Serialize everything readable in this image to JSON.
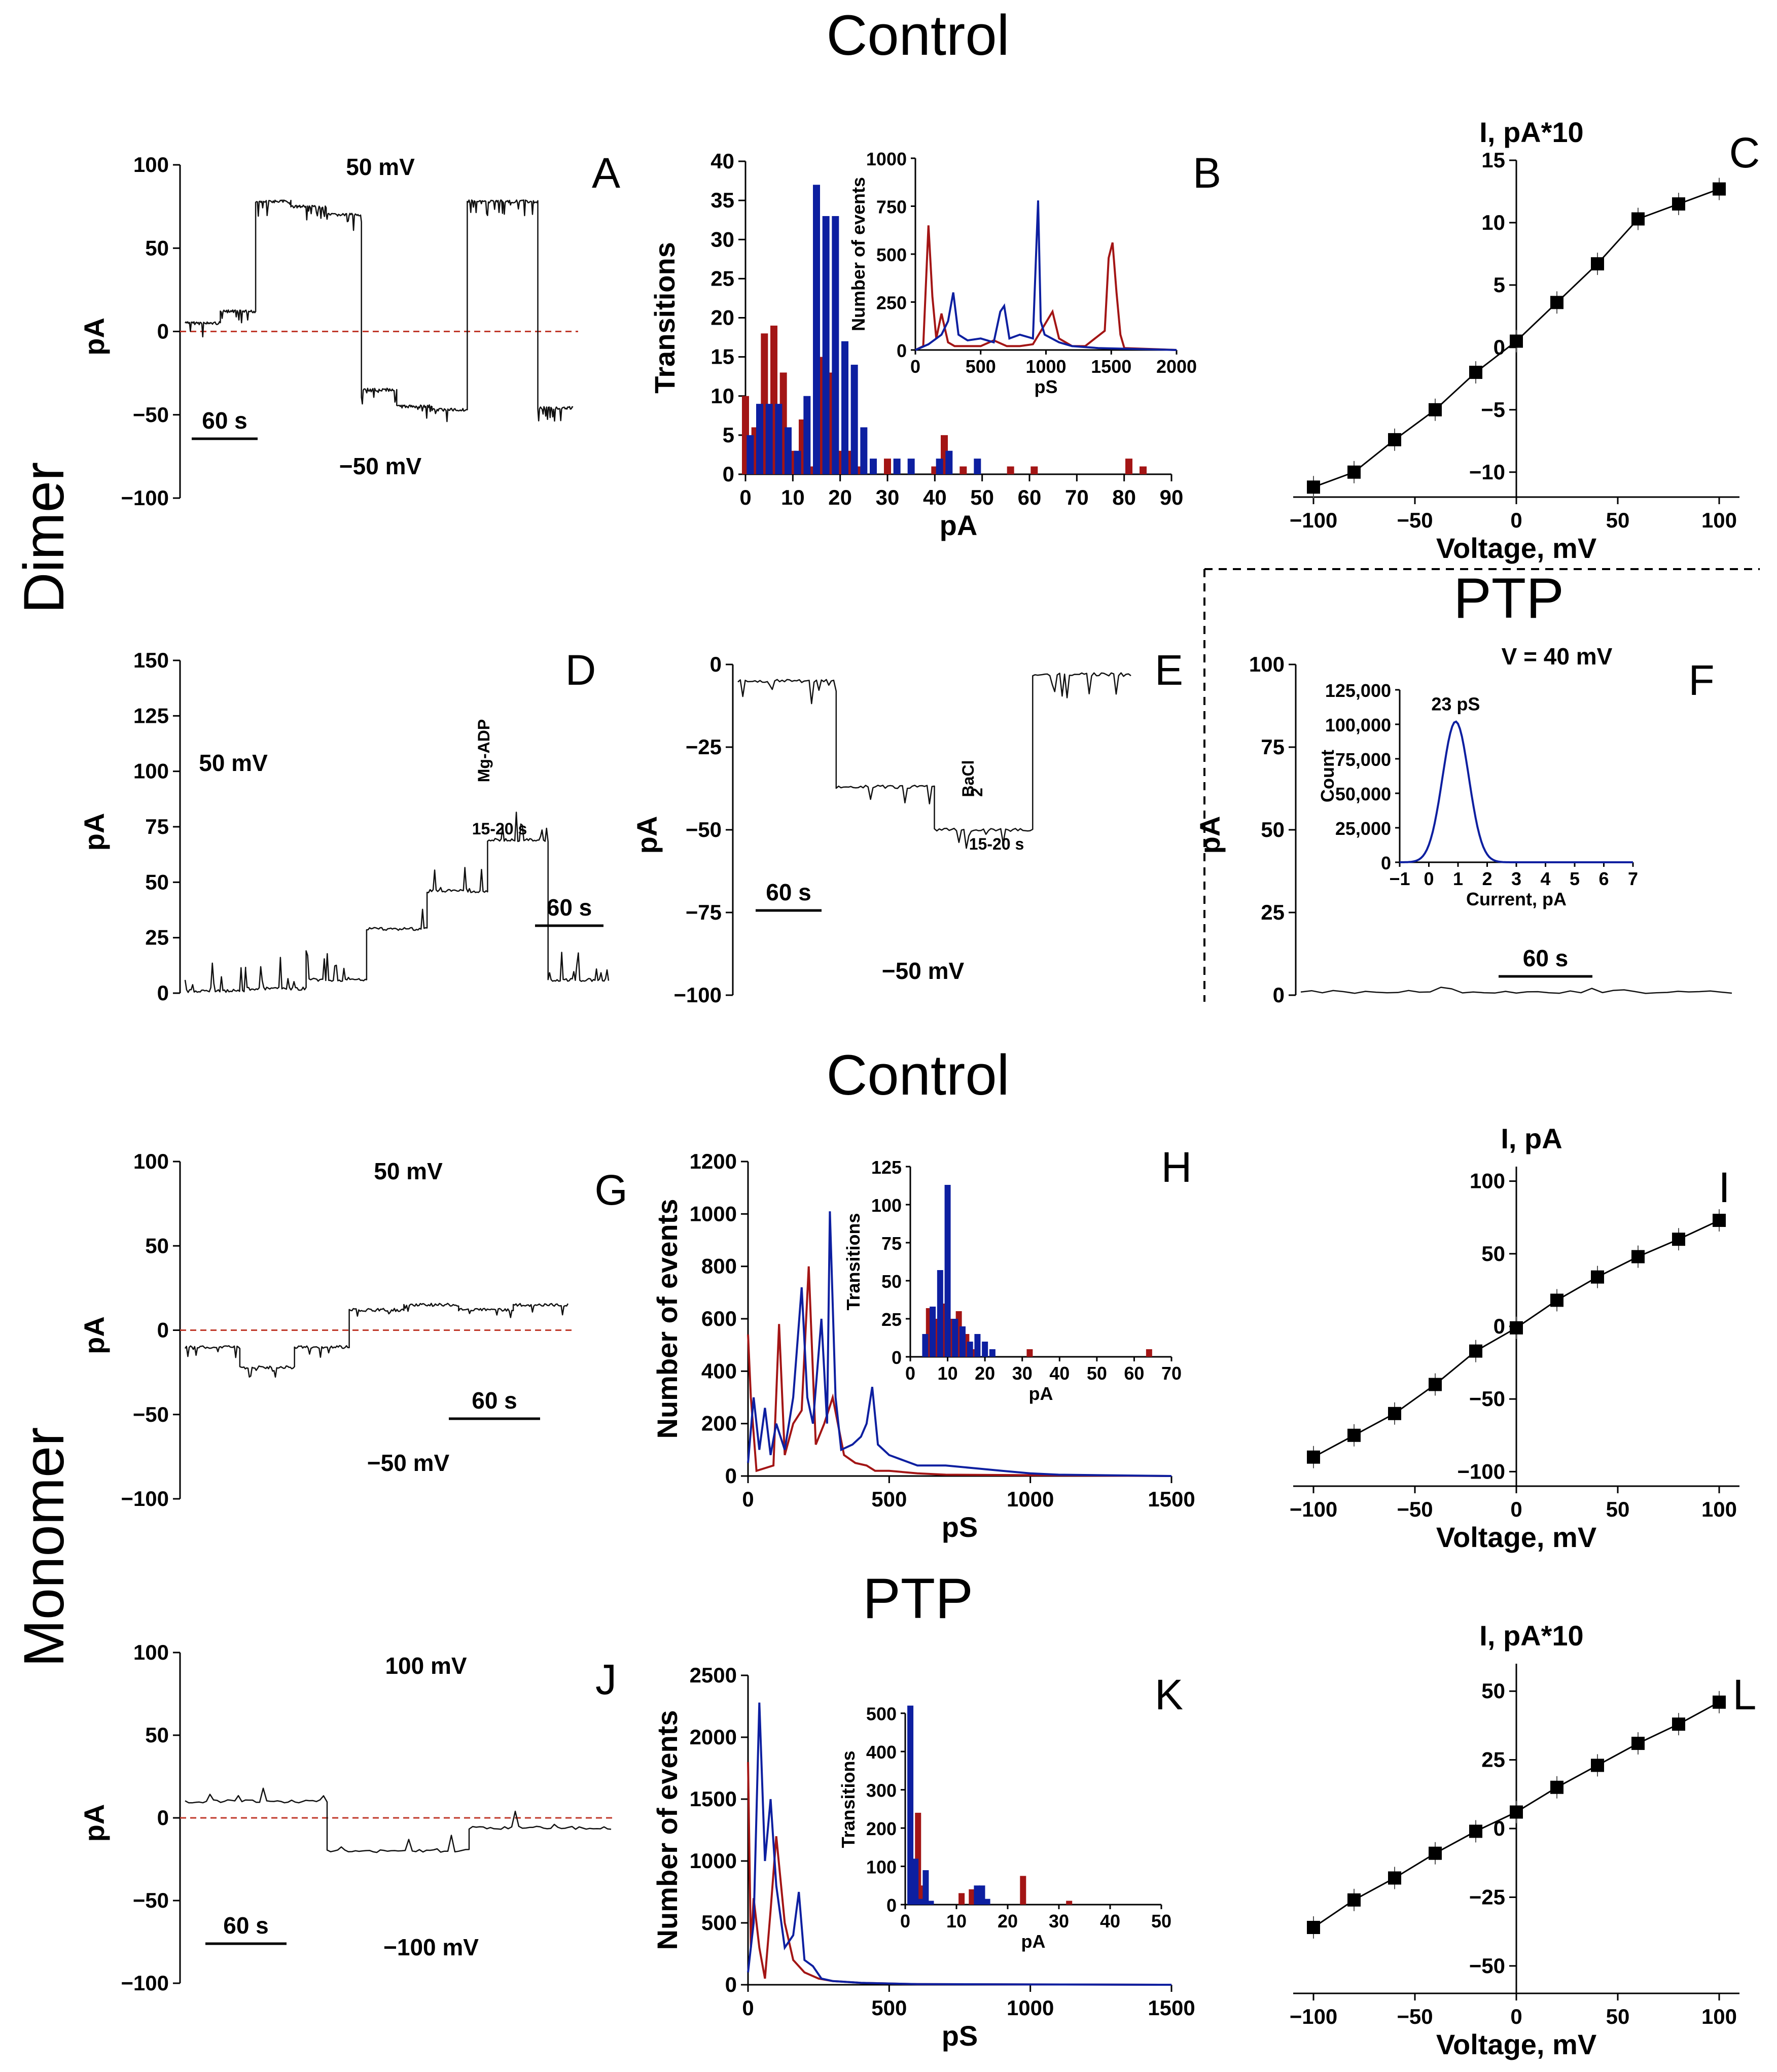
{
  "sections": {
    "control_top": "Control",
    "ptp_top": "PTP",
    "control_mid": "Control",
    "ptp_bot": "PTP",
    "dimer": "Dimer",
    "monomer": "Monomer"
  },
  "colors": {
    "red": "#a31515",
    "blue": "#0d1fa0",
    "trace": "#111111"
  },
  "chart_data": [
    {
      "id": "A",
      "type": "line",
      "letter": "A",
      "ylabel": "pA",
      "ylim": [
        -100,
        100
      ],
      "yticks": [
        "100",
        "50",
        "0",
        "-50",
        "-100"
      ],
      "notes": [
        "50 mV",
        "-50 mV"
      ],
      "scalebar": "60 s",
      "levels": [
        5,
        12,
        78,
        75,
        70,
        -35,
        -45,
        -47,
        78,
        78,
        -46
      ]
    },
    {
      "id": "B",
      "type": "bar",
      "letter": "B",
      "ylabel": "Transitions",
      "xlabel": "pA",
      "xlim": [
        0,
        90
      ],
      "ylim": [
        0,
        40
      ],
      "xticks": [
        "0",
        "10",
        "20",
        "30",
        "40",
        "50",
        "60",
        "70",
        "80",
        "90"
      ],
      "yticks": [
        "40",
        "35",
        "30",
        "25",
        "20",
        "15",
        "10",
        "5",
        "0"
      ],
      "series": [
        {
          "name": "red",
          "x": [
            0,
            2,
            4,
            6,
            8,
            10,
            12,
            14,
            16,
            18,
            20,
            22,
            24,
            30,
            40,
            42,
            46,
            56,
            61,
            81,
            84
          ],
          "values": [
            10,
            6,
            18,
            19,
            13,
            3,
            7,
            1,
            15,
            13,
            3,
            3,
            1,
            2,
            1,
            5,
            1,
            1,
            1,
            2,
            1
          ]
        },
        {
          "name": "blue",
          "x": [
            1,
            3,
            5,
            7,
            9,
            11,
            13,
            15,
            17,
            19,
            21,
            23,
            25,
            27,
            32,
            35,
            41,
            43,
            49
          ],
          "values": [
            5,
            9,
            9,
            9,
            6,
            3,
            10,
            37,
            33,
            33,
            17,
            14,
            6,
            2,
            2,
            2,
            2,
            3,
            2
          ]
        }
      ],
      "inset": {
        "ylabel": "Number of events",
        "xlabel": "pS",
        "xlim": [
          0,
          2000
        ],
        "ylim": [
          0,
          1000
        ],
        "xticks": [
          "0",
          "500",
          "1000",
          "1500",
          "2000"
        ],
        "yticks": [
          "1000",
          "750",
          "500",
          "250",
          "0"
        ],
        "series": [
          {
            "name": "red",
            "x": [
              0,
              60,
              100,
              130,
              160,
              200,
              250,
              300,
              400,
              500,
              600,
              700,
              800,
              900,
              1050,
              1100,
              1200,
              1300,
              1450,
              1480,
              1510,
              1540,
              1570,
              1600,
              2000
            ],
            "values": [
              0,
              20,
              650,
              280,
              60,
              190,
              40,
              20,
              20,
              20,
              50,
              20,
              20,
              30,
              200,
              60,
              20,
              20,
              100,
              480,
              560,
              300,
              80,
              10,
              0
            ]
          },
          {
            "name": "blue",
            "x": [
              0,
              100,
              200,
              250,
              290,
              330,
              400,
              500,
              600,
              650,
              680,
              720,
              800,
              900,
              940,
              960,
              990,
              1100,
              1200,
              1400,
              2000
            ],
            "values": [
              0,
              30,
              80,
              150,
              300,
              80,
              50,
              60,
              40,
              200,
              230,
              60,
              80,
              60,
              780,
              150,
              80,
              40,
              20,
              10,
              0
            ]
          }
        ]
      }
    },
    {
      "id": "C",
      "type": "scatter",
      "letter": "C",
      "title": "I, pA*10",
      "xlabel": "Voltage, mV",
      "xlim": [
        -100,
        100
      ],
      "ylim": [
        -12,
        15
      ],
      "xticks": [
        "-100",
        "-50",
        "0",
        "50",
        "100"
      ],
      "yticks": [
        "15",
        "10",
        "5",
        "0",
        "-5",
        "-10"
      ],
      "x": [
        -100,
        -80,
        -60,
        -40,
        -20,
        0,
        20,
        40,
        60,
        80,
        100
      ],
      "values": [
        -11.2,
        -10.0,
        -7.4,
        -5.0,
        -2.0,
        0.5,
        3.6,
        6.7,
        10.3,
        11.5,
        12.7
      ]
    },
    {
      "id": "D",
      "type": "line",
      "letter": "D",
      "ylabel": "pA",
      "ylim": [
        0,
        150
      ],
      "yticks": [
        "150",
        "125",
        "100",
        "75",
        "50",
        "25",
        "0"
      ],
      "notes": [
        "50 mV",
        "Mg-ADP",
        "15-20 s"
      ],
      "scalebar": "60 s",
      "levels": [
        1,
        2,
        6,
        29,
        46,
        69,
        6
      ]
    },
    {
      "id": "E",
      "type": "line",
      "letter": "E",
      "ylabel": "pA",
      "ylim": [
        -100,
        0
      ],
      "yticks": [
        "0",
        "-25",
        "-50",
        "-75",
        "-100"
      ],
      "notes": [
        "-50 mV",
        "BaCl",
        "2",
        "15-20 s"
      ],
      "scalebar": "60 s",
      "levels": [
        -5,
        -37,
        -50,
        -3
      ]
    },
    {
      "id": "F",
      "type": "line",
      "letter": "F",
      "ylabel": "pA",
      "ylim": [
        0,
        100
      ],
      "yticks": [
        "100",
        "75",
        "50",
        "25",
        "0"
      ],
      "notes": [
        "V = 40 mV"
      ],
      "scalebar": "60 s",
      "levels": [
        1
      ],
      "inset": {
        "ylabel": "Count",
        "xlabel": "Current, pA",
        "peak_label": "23 pS",
        "xlim": [
          -1,
          7
        ],
        "ylim": [
          0,
          125000
        ],
        "xticks": [
          "-1",
          "0",
          "1",
          "2",
          "3",
          "4",
          "5",
          "6",
          "7"
        ],
        "yticks": [
          "125,000",
          "100,000",
          "75,000",
          "50,000",
          "25,000",
          "0"
        ],
        "gauss": {
          "mean": 0.92,
          "sd": 0.45,
          "peak": 102000
        }
      }
    },
    {
      "id": "G",
      "type": "line",
      "letter": "G",
      "ylabel": "pA",
      "ylim": [
        -100,
        100
      ],
      "yticks": [
        "100",
        "50",
        "0",
        "-50",
        "-100"
      ],
      "notes": [
        "50 mV",
        "-50 mV"
      ],
      "scalebar": "60 s",
      "levels": [
        -10,
        -22,
        -10,
        12,
        15,
        12,
        15
      ]
    },
    {
      "id": "H",
      "type": "line",
      "letter": "H",
      "ylabel": "Number of events",
      "xlabel": "pS",
      "xlim": [
        0,
        1500
      ],
      "ylim": [
        0,
        1200
      ],
      "xticks": [
        "0",
        "500",
        "1000",
        "1500"
      ],
      "yticks": [
        "1200",
        "1000",
        "800",
        "600",
        "400",
        "200",
        "0"
      ],
      "series": [
        {
          "name": "red",
          "x": [
            0,
            10,
            30,
            60,
            90,
            110,
            130,
            160,
            190,
            215,
            240,
            270,
            300,
            340,
            380,
            420,
            450,
            500,
            600,
            700,
            1500
          ],
          "values": [
            540,
            300,
            20,
            30,
            40,
            580,
            80,
            200,
            250,
            800,
            120,
            200,
            300,
            80,
            50,
            40,
            20,
            20,
            10,
            5,
            0
          ]
        },
        {
          "name": "blue",
          "x": [
            0,
            20,
            40,
            60,
            80,
            100,
            130,
            160,
            190,
            210,
            230,
            260,
            280,
            290,
            310,
            330,
            370,
            400,
            420,
            440,
            460,
            500,
            550,
            600,
            700,
            800,
            900,
            1000,
            1100,
            1500
          ],
          "values": [
            50,
            300,
            100,
            260,
            80,
            200,
            100,
            300,
            720,
            300,
            200,
            600,
            200,
            1010,
            300,
            100,
            120,
            150,
            200,
            340,
            120,
            80,
            60,
            40,
            40,
            30,
            20,
            10,
            5,
            0
          ]
        }
      ],
      "inset": {
        "ylabel": "Transitions",
        "xlabel": "pA",
        "xlim": [
          0,
          70
        ],
        "ylim": [
          0,
          125
        ],
        "xticks": [
          "0",
          "10",
          "20",
          "30",
          "40",
          "50",
          "60",
          "70"
        ],
        "yticks": [
          "125",
          "100",
          "75",
          "50",
          "25",
          "0"
        ],
        "series": [
          {
            "name": "red",
            "x": [
              5,
              7,
              9,
              11,
              13,
              15,
              17,
              32,
              64
            ],
            "values": [
              32,
              25,
              35,
              25,
              30,
              15,
              5,
              5,
              5
            ]
          },
          {
            "name": "blue",
            "x": [
              4,
              6,
              8,
              10,
              12,
              14,
              16,
              18,
              20,
              22
            ],
            "values": [
              15,
              33,
              57,
              113,
              25,
              20,
              10,
              15,
              10,
              5
            ]
          }
        ]
      }
    },
    {
      "id": "I",
      "type": "scatter",
      "letter": "I",
      "title": "I, pA",
      "xlabel": "Voltage, mV",
      "xlim": [
        -100,
        100
      ],
      "ylim": [
        -110,
        110
      ],
      "xticks": [
        "-100",
        "-50",
        "0",
        "50",
        "100"
      ],
      "yticks": [
        "100",
        "50",
        "0",
        "-50",
        "-100"
      ],
      "x": [
        -100,
        -80,
        -60,
        -40,
        -20,
        0,
        20,
        40,
        60,
        80,
        100
      ],
      "values": [
        -90,
        -75,
        -60,
        -40,
        -17,
        -1,
        18,
        34,
        48,
        60,
        73
      ]
    },
    {
      "id": "J",
      "type": "line",
      "letter": "J",
      "ylabel": "pA",
      "ylim": [
        -100,
        100
      ],
      "yticks": [
        "100",
        "50",
        "0",
        "-50",
        "-100"
      ],
      "notes": [
        "100 mV",
        "-100 mV"
      ],
      "scalebar": "60 s",
      "levels": [
        10,
        -20,
        -6
      ]
    },
    {
      "id": "K",
      "type": "line",
      "letter": "K",
      "ylabel": "Number of events",
      "xlabel": "pS",
      "xlim": [
        0,
        1500
      ],
      "ylim": [
        0,
        2500
      ],
      "xticks": [
        "0",
        "500",
        "1000",
        "1500"
      ],
      "yticks": [
        "2500",
        "2000",
        "1500",
        "1000",
        "500",
        "0"
      ],
      "series": [
        {
          "name": "red",
          "x": [
            0,
            10,
            20,
            40,
            60,
            80,
            100,
            130,
            160,
            200,
            250,
            300,
            400,
            600,
            1500
          ],
          "values": [
            1800,
            300,
            700,
            300,
            50,
            600,
            1200,
            500,
            200,
            100,
            50,
            30,
            15,
            5,
            0
          ]
        },
        {
          "name": "blue",
          "x": [
            0,
            20,
            40,
            60,
            80,
            100,
            130,
            160,
            180,
            200,
            230,
            260,
            300,
            400,
            600,
            1500
          ],
          "values": [
            100,
            500,
            2280,
            1000,
            1500,
            800,
            300,
            400,
            750,
            200,
            150,
            50,
            30,
            15,
            5,
            0
          ]
        }
      ],
      "inset": {
        "ylabel": "Transitions",
        "xlabel": "pA",
        "xlim": [
          0,
          50
        ],
        "ylim": [
          0,
          550
        ],
        "xticks": [
          "0",
          "10",
          "20",
          "30",
          "40",
          "50"
        ],
        "yticks": [
          "500",
          "400",
          "300",
          "200",
          "100",
          "0"
        ],
        "series": [
          {
            "name": "red",
            "x": [
              1.5,
              2.5,
              3.5,
              5,
              11,
              13,
              23,
              32
            ],
            "values": [
              100,
              240,
              50,
              10,
              30,
              40,
              75,
              10
            ]
          },
          {
            "name": "blue",
            "x": [
              1,
              2,
              3,
              4,
              5,
              14,
              15,
              16
            ],
            "values": [
              520,
              120,
              15,
              90,
              10,
              50,
              50,
              15
            ]
          }
        ]
      }
    },
    {
      "id": "L",
      "type": "scatter",
      "letter": "L",
      "title": "I, pA*10",
      "xlabel": "Voltage, mV",
      "xlim": [
        -100,
        100
      ],
      "ylim": [
        -60,
        60
      ],
      "xticks": [
        "-100",
        "-50",
        "0",
        "50",
        "100"
      ],
      "yticks": [
        "50",
        "25",
        "0",
        "-25",
        "-50"
      ],
      "x": [
        -100,
        -80,
        -60,
        -40,
        -20,
        0,
        20,
        40,
        60,
        80,
        100
      ],
      "values": [
        -36,
        -26,
        -18,
        -9,
        -1,
        6,
        15,
        23,
        31,
        38,
        46
      ]
    }
  ]
}
